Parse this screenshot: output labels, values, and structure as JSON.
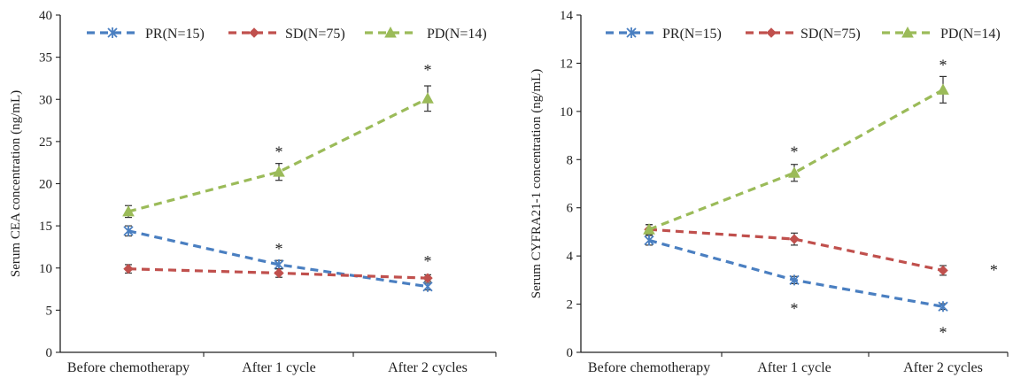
{
  "chart_data": [
    {
      "type": "line",
      "title": "",
      "xlabel": "",
      "ylabel": "Serum CEA concentration (ng/mL)",
      "categories": [
        "Before chemotherapy",
        "After 1 cycle",
        "After 2 cycles"
      ],
      "ylim": [
        0,
        40
      ],
      "yticks": [
        0,
        5,
        10,
        15,
        20,
        25,
        30,
        35,
        40
      ],
      "grid": false,
      "legend_position": "top",
      "series": [
        {
          "name": "PR(N=15)",
          "color": "#4a7fc1",
          "marker": "star",
          "values": [
            14.4,
            10.4,
            7.8
          ],
          "errors": [
            0.6,
            0.5,
            0.4
          ]
        },
        {
          "name": "SD(N=75)",
          "color": "#c0504d",
          "marker": "diamond",
          "values": [
            9.9,
            9.4,
            8.8
          ],
          "errors": [
            0.5,
            0.5,
            0.4
          ]
        },
        {
          "name": "PD(N=14)",
          "color": "#9bbb59",
          "marker": "triangle",
          "values": [
            16.7,
            21.4,
            30.1
          ],
          "errors": [
            0.7,
            1.0,
            1.5
          ]
        }
      ],
      "annotations": [
        {
          "text": "*",
          "category": 1,
          "y": 24.0
        },
        {
          "text": "*",
          "category": 2,
          "y": 33.7
        },
        {
          "text": "*",
          "category": 1,
          "y": 12.5
        },
        {
          "text": "*",
          "category": 2,
          "y": 11.0
        }
      ]
    },
    {
      "type": "line",
      "title": "",
      "xlabel": "",
      "ylabel": "Serum CYFRA21-1 concentration (ng/mL)",
      "categories": [
        "Before chemotherapy",
        "After 1 cycle",
        "After 2 cycles"
      ],
      "ylim": [
        0,
        14
      ],
      "yticks": [
        0,
        2,
        4,
        6,
        8,
        10,
        12,
        14
      ],
      "grid": false,
      "legend_position": "top",
      "series": [
        {
          "name": "PR(N=15)",
          "color": "#4a7fc1",
          "marker": "star",
          "values": [
            4.65,
            3.0,
            1.9
          ],
          "errors": [
            0.2,
            0.15,
            0.12
          ]
        },
        {
          "name": "SD(N=75)",
          "color": "#c0504d",
          "marker": "diamond",
          "values": [
            5.1,
            4.7,
            3.4
          ],
          "errors": [
            0.2,
            0.25,
            0.2
          ]
        },
        {
          "name": "PD(N=14)",
          "color": "#9bbb59",
          "marker": "triangle",
          "values": [
            5.1,
            7.45,
            10.9
          ],
          "errors": [
            0.2,
            0.35,
            0.55
          ]
        }
      ],
      "annotations": [
        {
          "text": "*",
          "category": 1,
          "y": 8.4
        },
        {
          "text": "*",
          "category": 2,
          "y": 12.0
        },
        {
          "text": "*",
          "category": 1,
          "y": 1.9
        },
        {
          "text": "*",
          "category": 2,
          "y": 0.9
        },
        {
          "text": "*",
          "category": 2.35,
          "y": 3.5
        }
      ]
    }
  ]
}
